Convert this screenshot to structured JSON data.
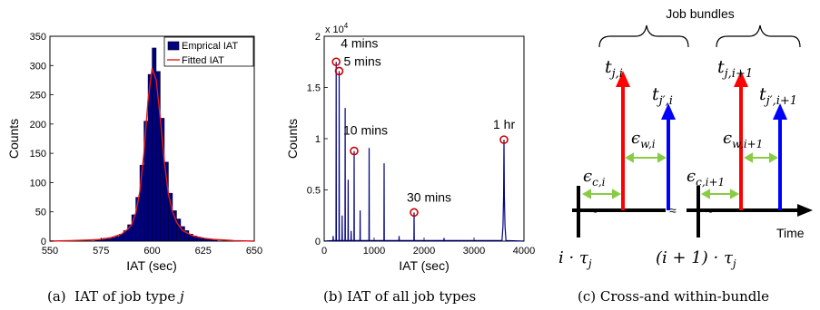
{
  "chart_data": [
    {
      "type": "bar",
      "ylabel": "Counts",
      "xlabel": "IAT (sec)",
      "xlim": [
        550,
        650
      ],
      "ylim": [
        0,
        350
      ],
      "xticks": [
        "550",
        "575",
        "600",
        "625",
        "650"
      ],
      "yticks": [
        "0",
        "50",
        "100",
        "150",
        "200",
        "250",
        "300",
        "350"
      ],
      "legend": {
        "placement": "top-right",
        "entries": [
          "Emprical IAT",
          "Fitted IAT"
        ]
      },
      "series": [
        {
          "name": "Emprical IAT",
          "x": [
            573,
            575,
            577,
            579,
            581,
            583,
            585,
            587,
            589,
            591,
            593,
            595,
            597,
            599,
            601,
            603,
            605,
            607,
            609,
            611,
            613,
            615,
            617,
            619,
            621,
            623,
            625,
            627,
            629,
            631
          ],
          "values": [
            2,
            3,
            5,
            4,
            6,
            8,
            12,
            18,
            28,
            45,
            75,
            130,
            205,
            285,
            330,
            290,
            210,
            135,
            82,
            52,
            38,
            25,
            18,
            12,
            9,
            7,
            5,
            4,
            3,
            2
          ]
        },
        {
          "name": "Fitted IAT",
          "x": [
            550,
            560,
            570,
            575,
            580,
            585,
            588,
            590,
            592,
            594,
            596,
            598,
            600,
            602,
            604,
            606,
            608,
            610,
            612,
            615,
            620,
            625,
            630,
            640,
            650
          ],
          "values": [
            0,
            1,
            2,
            3,
            6,
            12,
            20,
            28,
            48,
            85,
            150,
            240,
            295,
            275,
            210,
            135,
            80,
            50,
            32,
            18,
            9,
            5,
            3,
            1,
            0
          ]
        }
      ],
      "colors": {
        "bars": "#000080",
        "fit": "#e41a1c"
      },
      "caption": {
        "prefix": "(a)  IAT of job type ",
        "var": "j"
      }
    },
    {
      "type": "line",
      "ylabel": "Counts",
      "xlabel": "IAT (sec)",
      "xlim": [
        0,
        4000
      ],
      "ylim": [
        0,
        2
      ],
      "y_multiplier": "x 10",
      "y_multiplier_exp": "4",
      "xticks": [
        "0",
        "1000",
        "2000",
        "3000",
        "4000"
      ],
      "yticks": [
        "0",
        "0.5",
        "1",
        "1.5",
        "2"
      ],
      "peaks": [
        {
          "x": 180,
          "y": 0.05
        },
        {
          "x": 240,
          "y": 1.75
        },
        {
          "x": 300,
          "y": 1.66
        },
        {
          "x": 360,
          "y": 0.25
        },
        {
          "x": 420,
          "y": 1.3
        },
        {
          "x": 480,
          "y": 0.6
        },
        {
          "x": 540,
          "y": 0.1
        },
        {
          "x": 600,
          "y": 0.88
        },
        {
          "x": 720,
          "y": 0.3
        },
        {
          "x": 900,
          "y": 0.91
        },
        {
          "x": 1200,
          "y": 0.76
        },
        {
          "x": 1500,
          "y": 0.05
        },
        {
          "x": 1800,
          "y": 0.28
        },
        {
          "x": 2400,
          "y": 0.03
        },
        {
          "x": 3600,
          "y": 0.99
        }
      ],
      "annotations": [
        {
          "text": "4 mins",
          "x": 240,
          "y": 1.75
        },
        {
          "text": "5 mins",
          "x": 300,
          "y": 1.66
        },
        {
          "text": "10 mins",
          "x": 600,
          "y": 0.88
        },
        {
          "text": "30 mins",
          "x": 1800,
          "y": 0.28
        },
        {
          "text": "1 hr",
          "x": 3600,
          "y": 0.99
        }
      ],
      "colors": {
        "line": "#000080",
        "marker": "#cc0000"
      },
      "caption": "(b)  IAT of all job types"
    }
  ],
  "diagram": {
    "title": "Job bundles",
    "time_label": "Time",
    "arrows": {
      "t_j_i": {
        "base": "t",
        "sub": "j,i"
      },
      "t_jp_i": {
        "base": "t",
        "sub": "j′,i"
      },
      "t_j_i1": {
        "base": "t",
        "sub": "j,i+1"
      },
      "t_jp_i1": {
        "base": "t",
        "sub": "j′,i+1"
      }
    },
    "eps_w_i": {
      "base": "ϵ",
      "sub": "w,i"
    },
    "eps_w_i1": {
      "base": "ϵ",
      "sub": "w,i+1"
    },
    "eps_c_i": {
      "base": "ϵ",
      "sub": "c,i"
    },
    "eps_c_i1": {
      "base": "ϵ",
      "sub": "c,i+1"
    },
    "tick_i": "i · τ",
    "tick_i_sub": "j",
    "tick_i1": "(i + 1) · τ",
    "tick_i1_sub": "j",
    "colors": {
      "red": "#ff0000",
      "blue": "#0000ff",
      "green": "#88cc44"
    },
    "caption": "(c)  Cross-and within-bundle"
  }
}
